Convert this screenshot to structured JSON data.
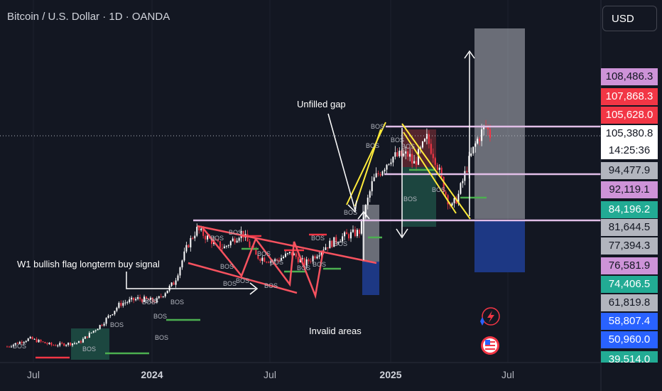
{
  "header": {
    "title": "Bitcoin / U.S. Dollar · 1D · OANDA",
    "currency_button": "USD"
  },
  "annotations": {
    "unfilled_gap": "Unfilled gap",
    "flag_signal": "W1 bullish flag longterm buy signal",
    "invalid_areas": "Invalid areas",
    "bos_label": "BOS"
  },
  "price_scale": {
    "tags": [
      {
        "label": "108,486.3",
        "bg": "#ce93d8",
        "fg": "#131722"
      },
      {
        "label": "107,868.3",
        "bg": "#f23645",
        "fg": "#ffffff"
      },
      {
        "label": "105,628.0",
        "bg": "#f23645",
        "fg": "#ffffff"
      },
      {
        "label": "105,380.8",
        "bg": "#ffffff",
        "fg": "#131722"
      },
      {
        "label": "14:25:36",
        "bg": "#ffffff",
        "fg": "#131722"
      },
      {
        "label": "94,477.9",
        "bg": "#b2b5be",
        "fg": "#131722"
      },
      {
        "label": "92,119.1",
        "bg": "#ce93d8",
        "fg": "#131722"
      },
      {
        "label": "84,196.2",
        "bg": "#22ab94",
        "fg": "#ffffff"
      },
      {
        "label": "81,644.5",
        "bg": "#b2b5be",
        "fg": "#131722"
      },
      {
        "label": "77,394.3",
        "bg": "#b2b5be",
        "fg": "#131722"
      },
      {
        "label": "76,581.9",
        "bg": "#ce93d8",
        "fg": "#131722"
      },
      {
        "label": "74,406.5",
        "bg": "#22ab94",
        "fg": "#ffffff"
      },
      {
        "label": "61,819.8",
        "bg": "#b2b5be",
        "fg": "#131722"
      },
      {
        "label": "58,807.4",
        "bg": "#2962ff",
        "fg": "#ffffff"
      },
      {
        "label": "50,960.0",
        "bg": "#2962ff",
        "fg": "#ffffff"
      },
      {
        "label": "39,514.0",
        "bg": "#22ab94",
        "fg": "#ffffff"
      }
    ]
  },
  "time_axis": {
    "labels": [
      {
        "label": "Jul",
        "bold": false
      },
      {
        "label": "2024",
        "bold": true
      },
      {
        "label": "Jul",
        "bold": false
      },
      {
        "label": "2025",
        "bold": true
      },
      {
        "label": "Jul",
        "bold": false
      }
    ]
  },
  "colors": {
    "background": "#131722",
    "bull": "#ffffff",
    "bear": "#f23645",
    "flag_lines": "#f7525f",
    "wedge_lines": "#ffeb3b",
    "horizontal_levels": "#e1bee7",
    "green_zone": "#1e4d44",
    "red_zone": "#5c2730",
    "grey_zone": "#b2b5be",
    "blue_zone": "#1e3a8a"
  },
  "icons": [
    "flash-icon",
    "us-flag-icon"
  ],
  "chart_data": {
    "type": "candlestick",
    "symbol": "Bitcoin / U.S. Dollar",
    "interval": "1D",
    "source": "OANDA",
    "x_labels": [
      "Jul",
      "2024",
      "Jul",
      "2025",
      "Jul"
    ],
    "last_price": 105380.8,
    "countdown": "14:25:36",
    "series": [
      {
        "name": "BTCUSD",
        "values": [
          [
            0.0,
            26000
          ],
          [
            0.05,
            29000
          ],
          [
            0.1,
            26500
          ],
          [
            0.16,
            27500
          ],
          [
            0.21,
            34500
          ],
          [
            0.25,
            42000
          ],
          [
            0.29,
            44000
          ],
          [
            0.33,
            43000
          ],
          [
            0.37,
            50000
          ],
          [
            0.4,
            64000
          ],
          [
            0.42,
            70000
          ],
          [
            0.45,
            66000
          ],
          [
            0.48,
            63000
          ],
          [
            0.52,
            69000
          ],
          [
            0.55,
            60000
          ],
          [
            0.59,
            58000
          ],
          [
            0.63,
            61000
          ],
          [
            0.66,
            57000
          ],
          [
            0.7,
            63000
          ],
          [
            0.74,
            67000
          ],
          [
            0.78,
            69000
          ],
          [
            0.81,
            88000
          ],
          [
            0.85,
            97000
          ],
          [
            0.89,
            98000
          ],
          [
            0.9,
            94000
          ],
          [
            0.93,
            104000
          ],
          [
            0.95,
            96000
          ],
          [
            0.97,
            84000
          ],
          [
            0.985,
            78000
          ],
          [
            1.0,
            83000
          ],
          [
            1.02,
            94000
          ],
          [
            1.04,
            103000
          ],
          [
            1.06,
            109000
          ],
          [
            1.07,
            105380
          ]
        ]
      }
    ],
    "levels": [
      108486.3,
      94477.9,
      81644.5
    ],
    "shapes": [
      "falling flag channel",
      "rising wedge",
      "falling wedge",
      "demand zones",
      "long position target"
    ]
  }
}
